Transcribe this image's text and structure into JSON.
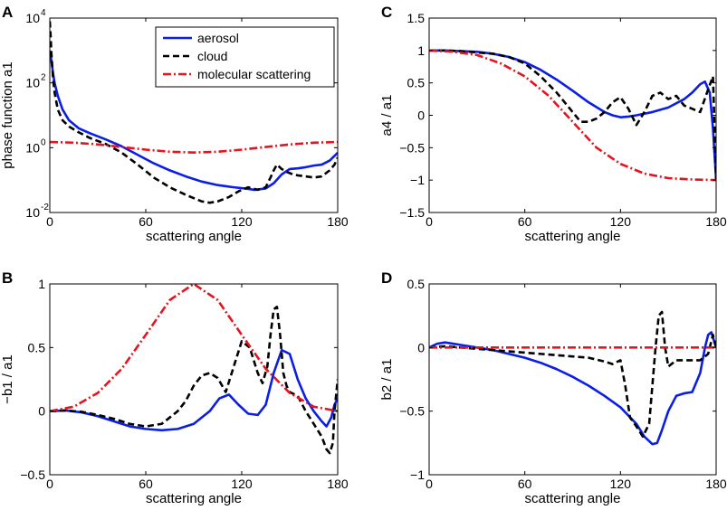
{
  "figure": {
    "legend": [
      {
        "label": "aerosol",
        "color": "#0a1ee6",
        "style": "solid"
      },
      {
        "label": "cloud",
        "color": "#000000",
        "style": "dashed"
      },
      {
        "label": "molecular scattering",
        "color": "#e6141e",
        "style": "dashdot"
      }
    ]
  },
  "chart_data": [
    {
      "panel": "A",
      "type": "line",
      "title": "",
      "xlabel": "scattering angle",
      "ylabel": "phase function a1",
      "yscale": "log",
      "xlim": [
        0,
        180
      ],
      "ylim": [
        0.01,
        10000
      ],
      "xticks": [
        0,
        60,
        120,
        180
      ],
      "xtick_labels": [
        "0",
        "60",
        "120",
        "180"
      ],
      "yticks": [
        0.01,
        1,
        100,
        10000
      ],
      "ytick_labels": [
        [
          "10",
          "-2"
        ],
        [
          "10",
          "0"
        ],
        [
          "10",
          "2"
        ],
        [
          "10",
          "4"
        ]
      ],
      "legend": true,
      "series": [
        {
          "name": "aerosol",
          "x": [
            0,
            1,
            2,
            3,
            5,
            8,
            12,
            18,
            25,
            35,
            45,
            55,
            65,
            75,
            85,
            95,
            105,
            115,
            122,
            128,
            135,
            140,
            145,
            150,
            155,
            160,
            165,
            170,
            175,
            180
          ],
          "y": [
            1000,
            500,
            200,
            100,
            40,
            15,
            7,
            4,
            2.8,
            1.8,
            1.1,
            0.6,
            0.33,
            0.2,
            0.13,
            0.09,
            0.07,
            0.06,
            0.055,
            0.05,
            0.055,
            0.08,
            0.15,
            0.22,
            0.23,
            0.25,
            0.28,
            0.3,
            0.4,
            0.7
          ]
        },
        {
          "name": "cloud",
          "x": [
            0,
            0.5,
            1,
            2,
            3,
            5,
            8,
            12,
            18,
            25,
            35,
            45,
            55,
            65,
            75,
            85,
            95,
            100,
            105,
            112,
            118,
            124,
            130,
            135,
            138,
            140,
            142,
            145,
            148,
            152,
            155,
            160,
            165,
            170,
            175,
            178,
            180
          ],
          "y": [
            8000,
            3000,
            800,
            150,
            50,
            15,
            7,
            4.5,
            3,
            2,
            1.3,
            0.7,
            0.3,
            0.12,
            0.06,
            0.035,
            0.022,
            0.02,
            0.022,
            0.03,
            0.045,
            0.06,
            0.05,
            0.06,
            0.12,
            0.2,
            0.3,
            0.22,
            0.18,
            0.15,
            0.14,
            0.13,
            0.12,
            0.13,
            0.2,
            0.3,
            0.5
          ]
        },
        {
          "name": "molecular scattering",
          "x": [
            0,
            15,
            30,
            45,
            60,
            75,
            90,
            105,
            120,
            135,
            150,
            165,
            180
          ],
          "y": [
            1.5,
            1.43,
            1.26,
            1.05,
            0.87,
            0.75,
            0.71,
            0.75,
            0.87,
            1.05,
            1.26,
            1.43,
            1.5
          ]
        }
      ]
    },
    {
      "panel": "C",
      "type": "line",
      "title": "",
      "xlabel": "scattering angle",
      "ylabel": "a4 / a1",
      "xlim": [
        0,
        180
      ],
      "ylim": [
        -1.5,
        1.5
      ],
      "xticks": [
        0,
        60,
        120,
        180
      ],
      "xtick_labels": [
        "0",
        "60",
        "120",
        "180"
      ],
      "yticks": [
        -1.5,
        -1,
        -0.5,
        0,
        0.5,
        1,
        1.5
      ],
      "ytick_labels": [
        "−1.5",
        "−1",
        "−0.5",
        "0",
        "0.5",
        "1",
        "1.5"
      ],
      "series": [
        {
          "name": "aerosol",
          "x": [
            0,
            10,
            20,
            30,
            40,
            50,
            60,
            70,
            80,
            90,
            100,
            110,
            115,
            120,
            125,
            130,
            140,
            150,
            160,
            165,
            170,
            173,
            176,
            178,
            180
          ],
          "y": [
            1,
            1,
            0.99,
            0.98,
            0.95,
            0.9,
            0.82,
            0.7,
            0.55,
            0.38,
            0.2,
            0.05,
            0,
            -0.03,
            -0.02,
            0,
            0.05,
            0.12,
            0.25,
            0.35,
            0.48,
            0.52,
            0.35,
            -0.2,
            -1
          ]
        },
        {
          "name": "cloud",
          "x": [
            0,
            10,
            20,
            30,
            40,
            50,
            60,
            70,
            80,
            90,
            95,
            100,
            105,
            110,
            115,
            120,
            125,
            130,
            135,
            140,
            145,
            150,
            155,
            160,
            165,
            170,
            175,
            178,
            180
          ],
          "y": [
            1,
            1,
            0.99,
            0.97,
            0.95,
            0.9,
            0.8,
            0.6,
            0.35,
            0.05,
            -0.1,
            -0.1,
            -0.05,
            0.05,
            0.2,
            0.28,
            0.1,
            -0.15,
            0.05,
            0.3,
            0.35,
            0.25,
            0.3,
            0.15,
            0.1,
            0.05,
            0.4,
            0.6,
            -1
          ]
        },
        {
          "name": "molecular scattering",
          "x": [
            0,
            15,
            30,
            45,
            60,
            75,
            90,
            105,
            120,
            135,
            150,
            165,
            180
          ],
          "y": [
            1,
            0.98,
            0.93,
            0.8,
            0.6,
            0.3,
            -0.1,
            -0.5,
            -0.75,
            -0.9,
            -0.97,
            -0.99,
            -1
          ]
        }
      ]
    },
    {
      "panel": "B",
      "type": "line",
      "title": "",
      "xlabel": "scattering angle",
      "ylabel": "−b1 / a1",
      "xlim": [
        0,
        180
      ],
      "ylim": [
        -0.5,
        1
      ],
      "xticks": [
        0,
        60,
        120,
        180
      ],
      "xtick_labels": [
        "0",
        "60",
        "120",
        "180"
      ],
      "yticks": [
        -0.5,
        0,
        0.5,
        1
      ],
      "ytick_labels": [
        "−0.5",
        "0",
        "0.5",
        "1"
      ],
      "series": [
        {
          "name": "aerosol",
          "x": [
            0,
            10,
            20,
            30,
            40,
            50,
            60,
            70,
            80,
            90,
            100,
            106,
            112,
            118,
            124,
            130,
            135,
            140,
            145,
            150,
            155,
            160,
            165,
            170,
            173,
            176,
            178,
            180
          ],
          "y": [
            0,
            0.005,
            -0.01,
            -0.04,
            -0.08,
            -0.12,
            -0.14,
            -0.15,
            -0.14,
            -0.1,
            0,
            0.1,
            0.13,
            0.05,
            -0.02,
            -0.03,
            0.05,
            0.3,
            0.48,
            0.45,
            0.25,
            0.1,
            0,
            -0.08,
            -0.12,
            -0.05,
            0.05,
            0.1
          ]
        },
        {
          "name": "cloud",
          "x": [
            0,
            10,
            20,
            30,
            40,
            50,
            60,
            70,
            75,
            80,
            85,
            90,
            95,
            100,
            105,
            110,
            115,
            120,
            125,
            130,
            133,
            136,
            138,
            140,
            142,
            144,
            146,
            148,
            150,
            155,
            160,
            165,
            170,
            173,
            175,
            177,
            178,
            180
          ],
          "y": [
            0,
            0.005,
            -0.005,
            -0.03,
            -0.06,
            -0.1,
            -0.12,
            -0.1,
            -0.05,
            0,
            0.08,
            0.2,
            0.28,
            0.3,
            0.26,
            0.15,
            0.35,
            0.55,
            0.5,
            0.3,
            0.22,
            0.35,
            0.6,
            0.8,
            0.82,
            0.6,
            0.3,
            0.2,
            0.15,
            0.12,
            0,
            -0.1,
            -0.2,
            -0.3,
            -0.33,
            -0.25,
            0,
            0.25
          ]
        },
        {
          "name": "molecular scattering",
          "x": [
            0,
            15,
            30,
            45,
            60,
            75,
            90,
            105,
            120,
            135,
            150,
            165,
            180
          ],
          "y": [
            0,
            0.035,
            0.143,
            0.333,
            0.6,
            0.873,
            1,
            0.873,
            0.6,
            0.333,
            0.143,
            0.035,
            0
          ]
        }
      ]
    },
    {
      "panel": "D",
      "type": "line",
      "title": "",
      "xlabel": "scattering angle",
      "ylabel": "b2 / a1",
      "xlim": [
        0,
        180
      ],
      "ylim": [
        -1,
        0.5
      ],
      "xticks": [
        0,
        60,
        120,
        180
      ],
      "xtick_labels": [
        "0",
        "60",
        "120",
        "180"
      ],
      "yticks": [
        -1,
        -0.5,
        0,
        0.5
      ],
      "ytick_labels": [
        "−1",
        "−0.5",
        "0",
        "0.5"
      ],
      "series": [
        {
          "name": "aerosol",
          "x": [
            0,
            5,
            10,
            20,
            30,
            40,
            50,
            60,
            70,
            80,
            90,
            100,
            110,
            120,
            130,
            135,
            140,
            143,
            146,
            150,
            155,
            160,
            165,
            170,
            173,
            175,
            177,
            180
          ],
          "y": [
            0,
            0.03,
            0.04,
            0.02,
            0,
            -0.02,
            -0.05,
            -0.08,
            -0.12,
            -0.17,
            -0.23,
            -0.3,
            -0.38,
            -0.47,
            -0.6,
            -0.7,
            -0.76,
            -0.75,
            -0.65,
            -0.5,
            -0.38,
            -0.36,
            -0.35,
            -0.2,
            0,
            0.1,
            0.12,
            0
          ]
        },
        {
          "name": "cloud",
          "x": [
            0,
            10,
            20,
            30,
            40,
            50,
            60,
            70,
            80,
            90,
            100,
            110,
            115,
            120,
            123,
            126,
            130,
            134,
            138,
            142,
            144,
            146,
            148,
            150,
            155,
            160,
            165,
            170,
            175,
            178,
            180
          ],
          "y": [
            0,
            0.01,
            0,
            -0.01,
            -0.02,
            -0.03,
            -0.04,
            -0.05,
            -0.06,
            -0.07,
            -0.08,
            -0.11,
            -0.13,
            -0.1,
            -0.3,
            -0.55,
            -0.62,
            -0.7,
            -0.6,
            0,
            0.25,
            0.28,
            0,
            -0.15,
            -0.1,
            -0.1,
            -0.1,
            -0.1,
            -0.05,
            0.1,
            0
          ]
        },
        {
          "name": "molecular scattering",
          "x": [
            0,
            180
          ],
          "y": [
            0,
            0
          ]
        }
      ]
    }
  ]
}
